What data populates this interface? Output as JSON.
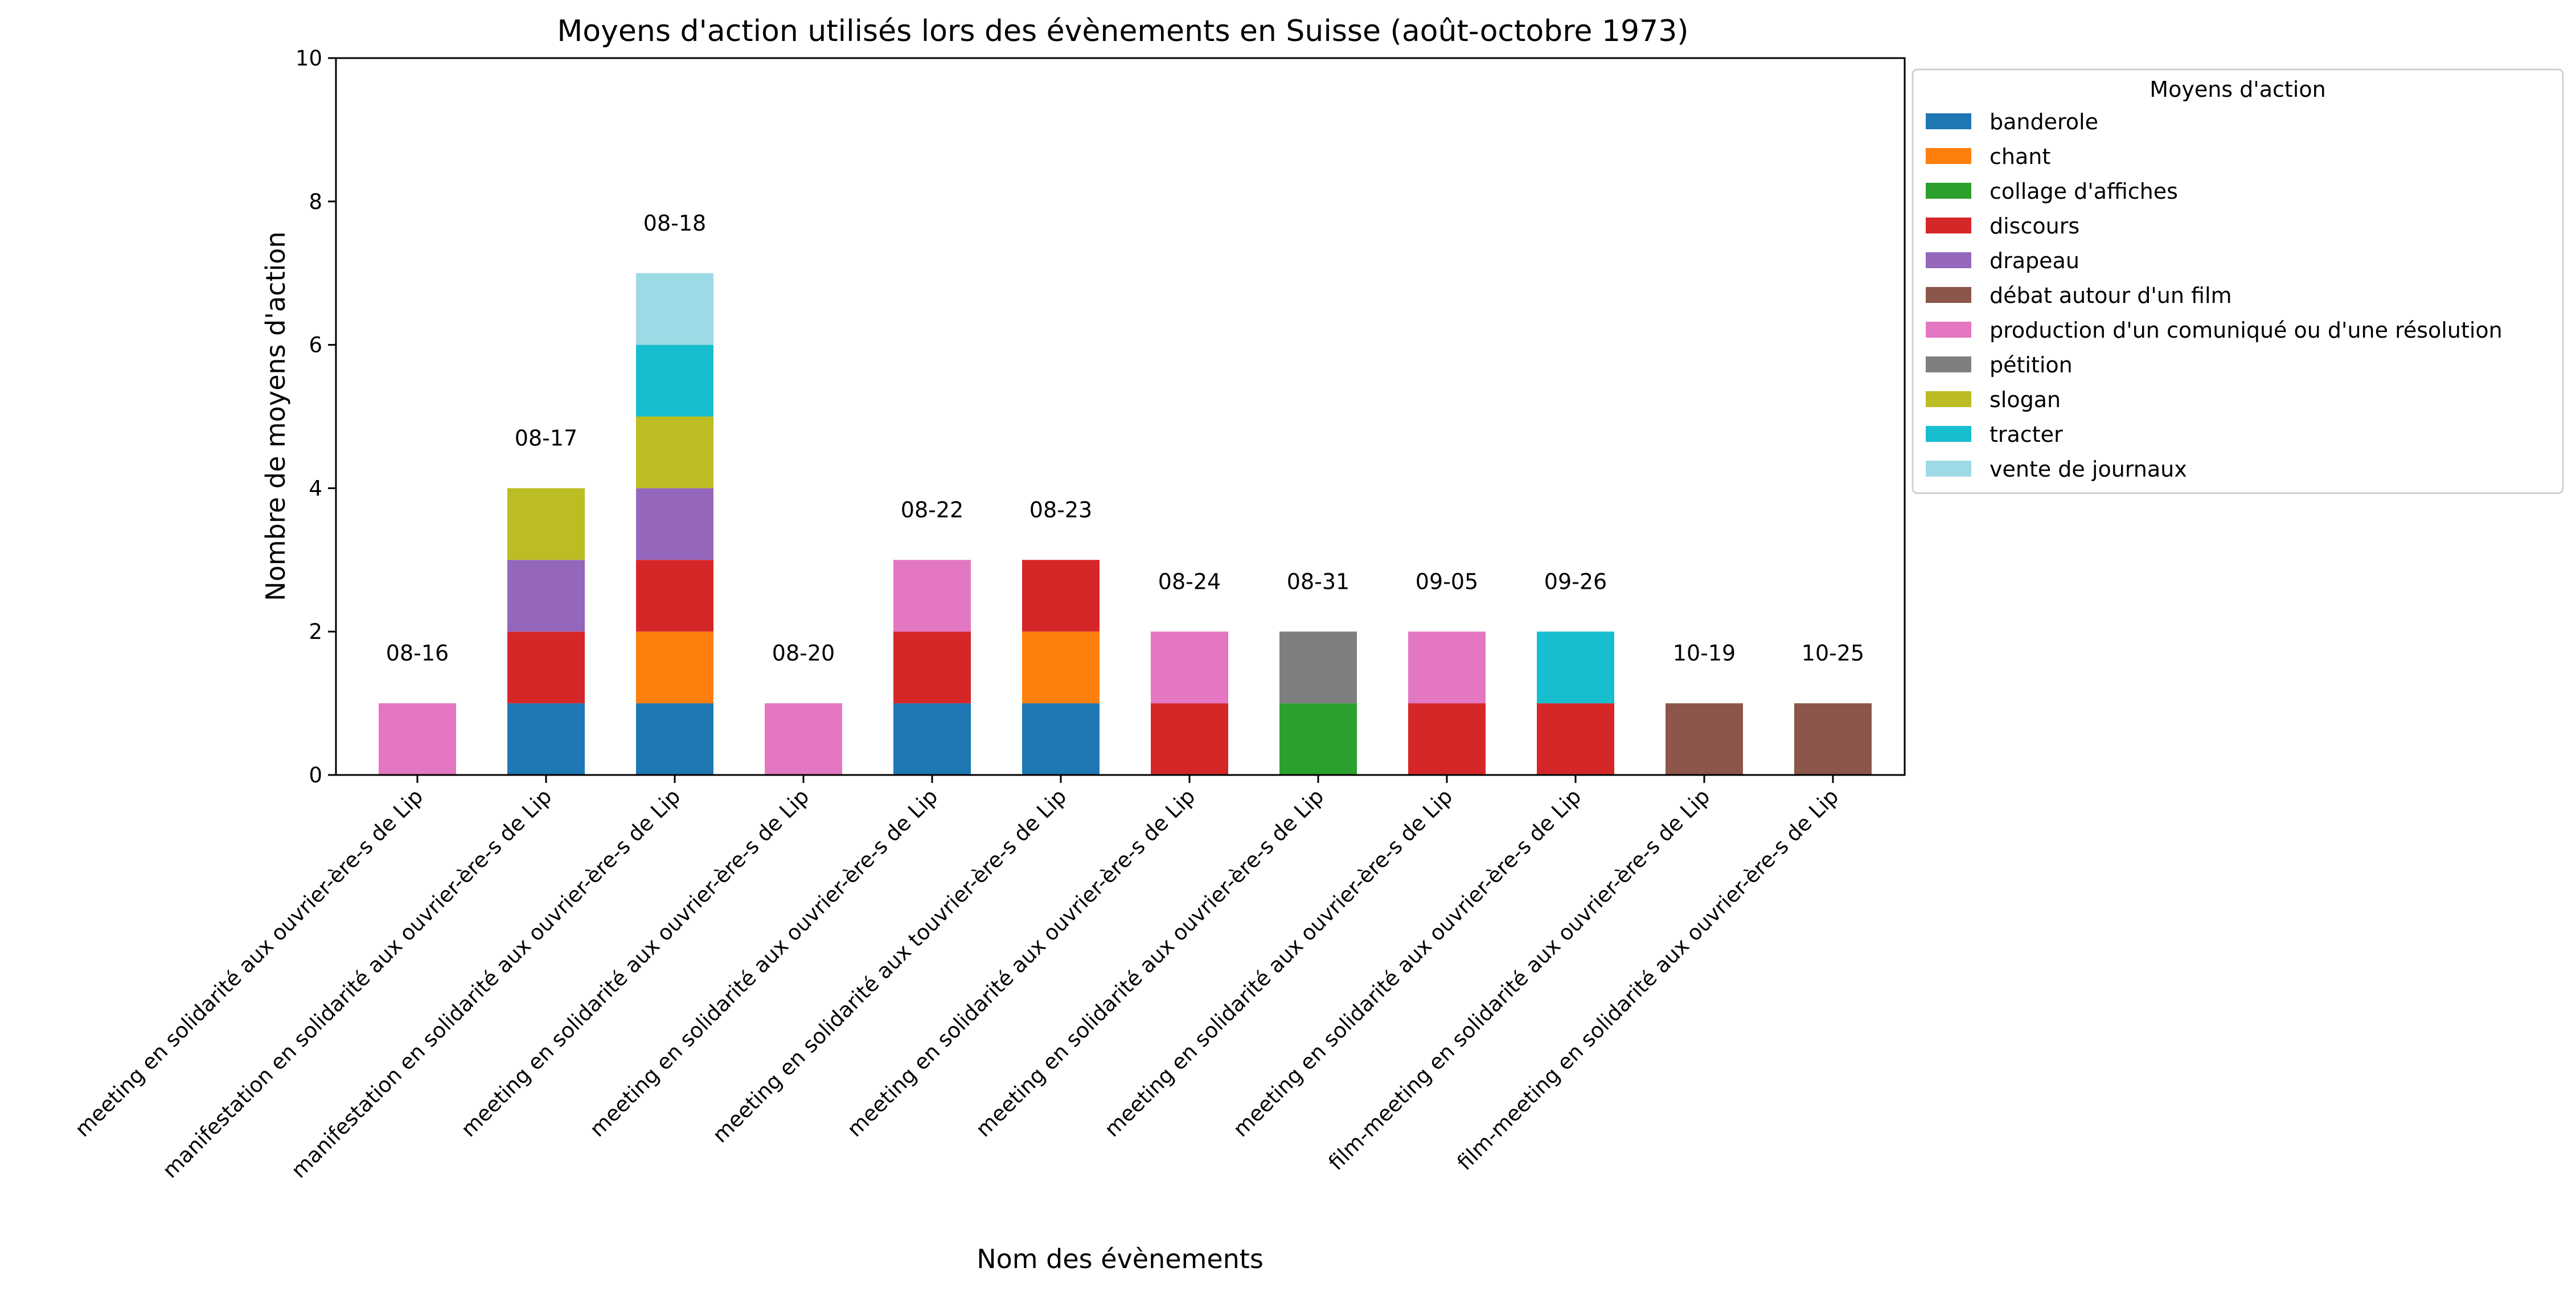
{
  "chart_data": {
    "type": "bar",
    "stacked": true,
    "title": "Moyens d'action utilisés lors des évènements en Suisse (août-octobre 1973)",
    "xlabel": "Nom des évènements",
    "ylabel": "Nombre de moyens d'action",
    "ylim": [
      0,
      10
    ],
    "yticks": [
      "0",
      "2",
      "4",
      "6",
      "8",
      "10"
    ],
    "grid": false,
    "legend_placement": "outside-right-top",
    "legend_title": "Moyens d'action",
    "categories": [
      "meeting en solidarité aux ouvrier-ère-s de Lip",
      "manifestation en solidarité aux ouvrier-ère-s de Lip",
      "manifestation en solidarité aux ouvrier-ère-s de Lip",
      "meeting en solidarité aux ouvrier-ère-s de Lip",
      "meeting en solidarité aux ouvrier-ère-s de Lip",
      "meeting en solidarité aux touvrier-ère-s de Lip",
      "meeting en solidarité aux ouvrier-ère-s de Lip",
      "meeting en solidarité aux ouvrier-ère-s de Lip",
      "meeting en solidarité aux ouvrier-ère-s de Lip",
      "meeting en solidarité aux ouvrier-ère-s de Lip",
      "film-meeting en solidarité aux ouvrier-ère-s de Lip",
      "film-meeting en solidarité aux ouvrier-ère-s de Lip"
    ],
    "dates": [
      "08-16",
      "08-17",
      "08-18",
      "08-20",
      "08-22",
      "08-23",
      "08-24",
      "08-31",
      "09-05",
      "09-26",
      "10-19",
      "10-25"
    ],
    "series": [
      {
        "name": "banderole",
        "color": "#1f77b4",
        "values": [
          0,
          1,
          1,
          0,
          1,
          1,
          0,
          0,
          0,
          0,
          0,
          0
        ]
      },
      {
        "name": "chant",
        "color": "#ff7f0e",
        "values": [
          0,
          0,
          1,
          0,
          0,
          1,
          0,
          0,
          0,
          0,
          0,
          0
        ]
      },
      {
        "name": "collage d'affiches",
        "color": "#2ca02c",
        "values": [
          0,
          0,
          0,
          0,
          0,
          0,
          0,
          1,
          0,
          0,
          0,
          0
        ]
      },
      {
        "name": "discours",
        "color": "#d62728",
        "values": [
          0,
          1,
          1,
          0,
          1,
          1,
          1,
          0,
          1,
          1,
          0,
          0
        ]
      },
      {
        "name": "drapeau",
        "color": "#9467bd",
        "values": [
          0,
          1,
          1,
          0,
          0,
          0,
          0,
          0,
          0,
          0,
          0,
          0
        ]
      },
      {
        "name": "débat autour d'un film",
        "color": "#8c564b",
        "values": [
          0,
          0,
          0,
          0,
          0,
          0,
          0,
          0,
          0,
          0,
          1,
          1
        ]
      },
      {
        "name": "production d'un comuniqué ou d'une résolution",
        "color": "#e377c2",
        "values": [
          1,
          0,
          0,
          1,
          1,
          0,
          1,
          0,
          1,
          0,
          0,
          0
        ]
      },
      {
        "name": "pétition",
        "color": "#7f7f7f",
        "values": [
          0,
          0,
          0,
          0,
          0,
          0,
          0,
          1,
          0,
          0,
          0,
          0
        ]
      },
      {
        "name": "slogan",
        "color": "#bcbd22",
        "values": [
          0,
          1,
          1,
          0,
          0,
          0,
          0,
          0,
          0,
          0,
          0,
          0
        ]
      },
      {
        "name": "tracter",
        "color": "#17becf",
        "values": [
          0,
          0,
          1,
          0,
          0,
          0,
          0,
          0,
          0,
          1,
          0,
          0
        ]
      },
      {
        "name": "vente de journaux",
        "color": "#9edae5",
        "values": [
          0,
          0,
          1,
          0,
          0,
          0,
          0,
          0,
          0,
          0,
          0,
          0
        ]
      }
    ]
  }
}
